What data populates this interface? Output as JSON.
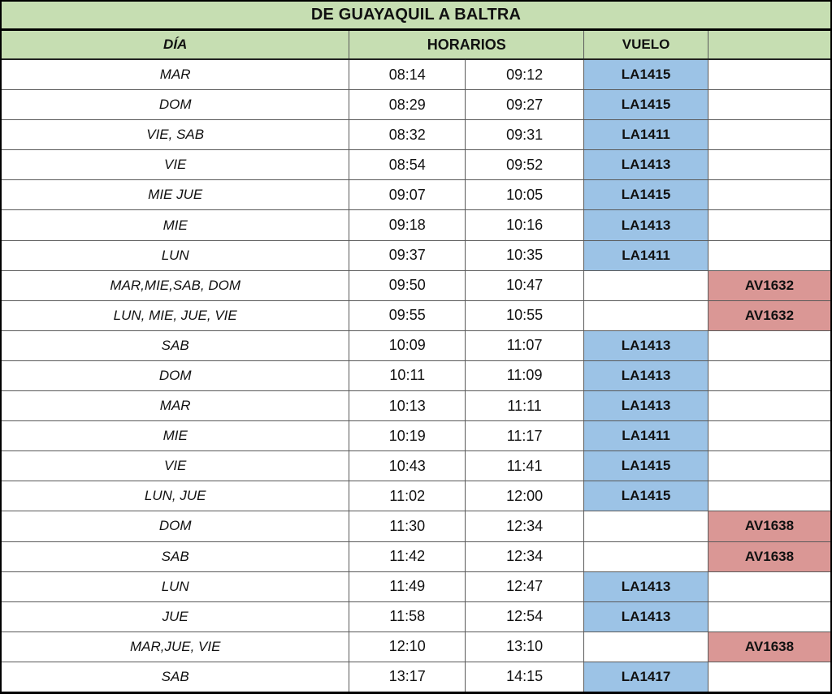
{
  "table": {
    "title": "DE GUAYAQUIL A BALTRA",
    "columns": {
      "day": "DÍA",
      "times": "HORARIOS",
      "flight": "VUELO",
      "extra": ""
    },
    "colors": {
      "header_green": "#c6deb2",
      "la_blue": "#9cc3e6",
      "av_pink": "#da9795"
    },
    "rows": [
      {
        "day": "MAR",
        "dep": "08:14",
        "arr": "09:12",
        "la": "LA1415",
        "av": ""
      },
      {
        "day": "DOM",
        "dep": "08:29",
        "arr": "09:27",
        "la": "LA1415",
        "av": ""
      },
      {
        "day": "VIE, SAB",
        "dep": "08:32",
        "arr": "09:31",
        "la": "LA1411",
        "av": ""
      },
      {
        "day": "VIE",
        "dep": "08:54",
        "arr": "09:52",
        "la": "LA1413",
        "av": ""
      },
      {
        "day": "MIE JUE",
        "dep": "09:07",
        "arr": "10:05",
        "la": "LA1415",
        "av": ""
      },
      {
        "day": "MIE",
        "dep": "09:18",
        "arr": "10:16",
        "la": "LA1413",
        "av": ""
      },
      {
        "day": "LUN",
        "dep": "09:37",
        "arr": "10:35",
        "la": "LA1411",
        "av": ""
      },
      {
        "day": "MAR,MIE,SAB, DOM",
        "dep": "09:50",
        "arr": "10:47",
        "la": "",
        "av": "AV1632"
      },
      {
        "day": "LUN, MIE, JUE, VIE",
        "dep": "09:55",
        "arr": "10:55",
        "la": "",
        "av": "AV1632"
      },
      {
        "day": "SAB",
        "dep": "10:09",
        "arr": "11:07",
        "la": "LA1413",
        "av": ""
      },
      {
        "day": "DOM",
        "dep": "10:11",
        "arr": "11:09",
        "la": "LA1413",
        "av": ""
      },
      {
        "day": "MAR",
        "dep": "10:13",
        "arr": "11:11",
        "la": "LA1413",
        "av": ""
      },
      {
        "day": "MIE",
        "dep": "10:19",
        "arr": "11:17",
        "la": "LA1411",
        "av": ""
      },
      {
        "day": "VIE",
        "dep": "10:43",
        "arr": "11:41",
        "la": "LA1415",
        "av": ""
      },
      {
        "day": "LUN, JUE",
        "dep": "11:02",
        "arr": "12:00",
        "la": "LA1415",
        "av": ""
      },
      {
        "day": "DOM",
        "dep": "11:30",
        "arr": "12:34",
        "la": "",
        "av": "AV1638"
      },
      {
        "day": "SAB",
        "dep": "11:42",
        "arr": "12:34",
        "la": "",
        "av": "AV1638"
      },
      {
        "day": "LUN",
        "dep": "11:49",
        "arr": "12:47",
        "la": "LA1413",
        "av": ""
      },
      {
        "day": "JUE",
        "dep": "11:58",
        "arr": "12:54",
        "la": "LA1413",
        "av": ""
      },
      {
        "day": "MAR,JUE, VIE",
        "dep": "12:10",
        "arr": "13:10",
        "la": "",
        "av": "AV1638"
      },
      {
        "day": "SAB",
        "dep": "13:17",
        "arr": "14:15",
        "la": "LA1417",
        "av": ""
      }
    ]
  }
}
